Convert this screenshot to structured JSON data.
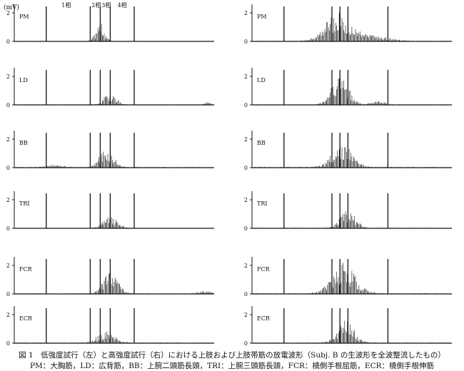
{
  "unit_label": "(mV)",
  "phase_labels": [
    "1相",
    "2相",
    "3相",
    "4相"
  ],
  "caption": {
    "line1": "図 1　低強度試行（左）と高強度試行（右）における上肢および上肢帯筋の放電波形（Subj. B の生波形を全波整流したもの）",
    "line2": "PM：大胸筋，LD：広背筋，BB：上腕二頭筋長頭，TRI：上腕三頭筋長頭，FCR：橈側手根屈筋，ECR：橈側手根伸筋"
  },
  "chart_data": {
    "type": "line",
    "y_ticks": [
      0,
      2
    ],
    "ylim": [
      0,
      2.6
    ],
    "x_range": [
      0,
      100
    ],
    "columns": [
      "低強度試行",
      "高強度試行"
    ],
    "muscles": [
      "PM",
      "LD",
      "BB",
      "TRI",
      "FCR",
      "ECR"
    ],
    "panels": [
      {
        "column": 0,
        "muscle": "PM",
        "markers": [
          16,
          38,
          43,
          48,
          60
        ],
        "bursts": [
          {
            "center": 43,
            "width": 3,
            "amp": 1.3
          }
        ],
        "baseline": 0.03
      },
      {
        "column": 0,
        "muscle": "LD",
        "markers": [
          16,
          38,
          43,
          48,
          60
        ],
        "bursts": [
          {
            "center": 48,
            "width": 4,
            "amp": 0.9
          },
          {
            "center": 97,
            "width": 2,
            "amp": 0.2
          }
        ],
        "baseline": 0.04
      },
      {
        "column": 0,
        "muscle": "BB",
        "markers": [
          16,
          38,
          43,
          48,
          60
        ],
        "bursts": [
          {
            "center": 46,
            "width": 5,
            "amp": 1.3
          },
          {
            "center": 20,
            "width": 6,
            "amp": 0.2
          }
        ],
        "baseline": 0.05
      },
      {
        "column": 0,
        "muscle": "TRI",
        "markers": [
          16,
          38,
          43,
          48,
          60
        ],
        "bursts": [
          {
            "center": 48,
            "width": 5,
            "amp": 0.8
          }
        ],
        "baseline": 0.03
      },
      {
        "column": 0,
        "muscle": "FCR",
        "markers": [
          16,
          38,
          43,
          48,
          60
        ],
        "bursts": [
          {
            "center": 48,
            "width": 5,
            "amp": 1.8
          },
          {
            "center": 95,
            "width": 4,
            "amp": 0.2
          }
        ],
        "baseline": 0.05
      },
      {
        "column": 0,
        "muscle": "ECR",
        "markers": [
          16,
          38,
          43,
          48,
          60
        ],
        "bursts": [
          {
            "center": 46,
            "width": 6,
            "amp": 0.8
          }
        ],
        "baseline": 0.05
      },
      {
        "column": 1,
        "muscle": "PM",
        "markers": [
          16,
          40,
          44,
          48,
          68
        ],
        "bursts": [
          {
            "center": 43,
            "width": 9,
            "amp": 2.0
          },
          {
            "center": 60,
            "width": 12,
            "amp": 0.4
          }
        ],
        "baseline": 0.04
      },
      {
        "column": 1,
        "muscle": "LD",
        "markers": [
          16,
          40,
          44,
          48,
          68
        ],
        "bursts": [
          {
            "center": 44,
            "width": 6,
            "amp": 2.0
          },
          {
            "center": 63,
            "width": 4,
            "amp": 0.3
          }
        ],
        "baseline": 0.04
      },
      {
        "column": 1,
        "muscle": "BB",
        "markers": [
          16,
          40,
          44,
          48,
          68
        ],
        "bursts": [
          {
            "center": 45,
            "width": 7,
            "amp": 1.7
          }
        ],
        "baseline": 0.06
      },
      {
        "column": 1,
        "muscle": "TRI",
        "markers": [
          16,
          40,
          44,
          48,
          68
        ],
        "bursts": [
          {
            "center": 48,
            "width": 5,
            "amp": 1.4
          }
        ],
        "baseline": 0.04
      },
      {
        "column": 1,
        "muscle": "FCR",
        "markers": [
          16,
          40,
          44,
          48,
          68
        ],
        "bursts": [
          {
            "center": 46,
            "width": 8,
            "amp": 2.2
          }
        ],
        "baseline": 0.06
      },
      {
        "column": 1,
        "muscle": "ECR",
        "markers": [
          16,
          40,
          44,
          48,
          68
        ],
        "bursts": [
          {
            "center": 47,
            "width": 6,
            "amp": 1.6
          }
        ],
        "baseline": 0.05
      }
    ]
  }
}
